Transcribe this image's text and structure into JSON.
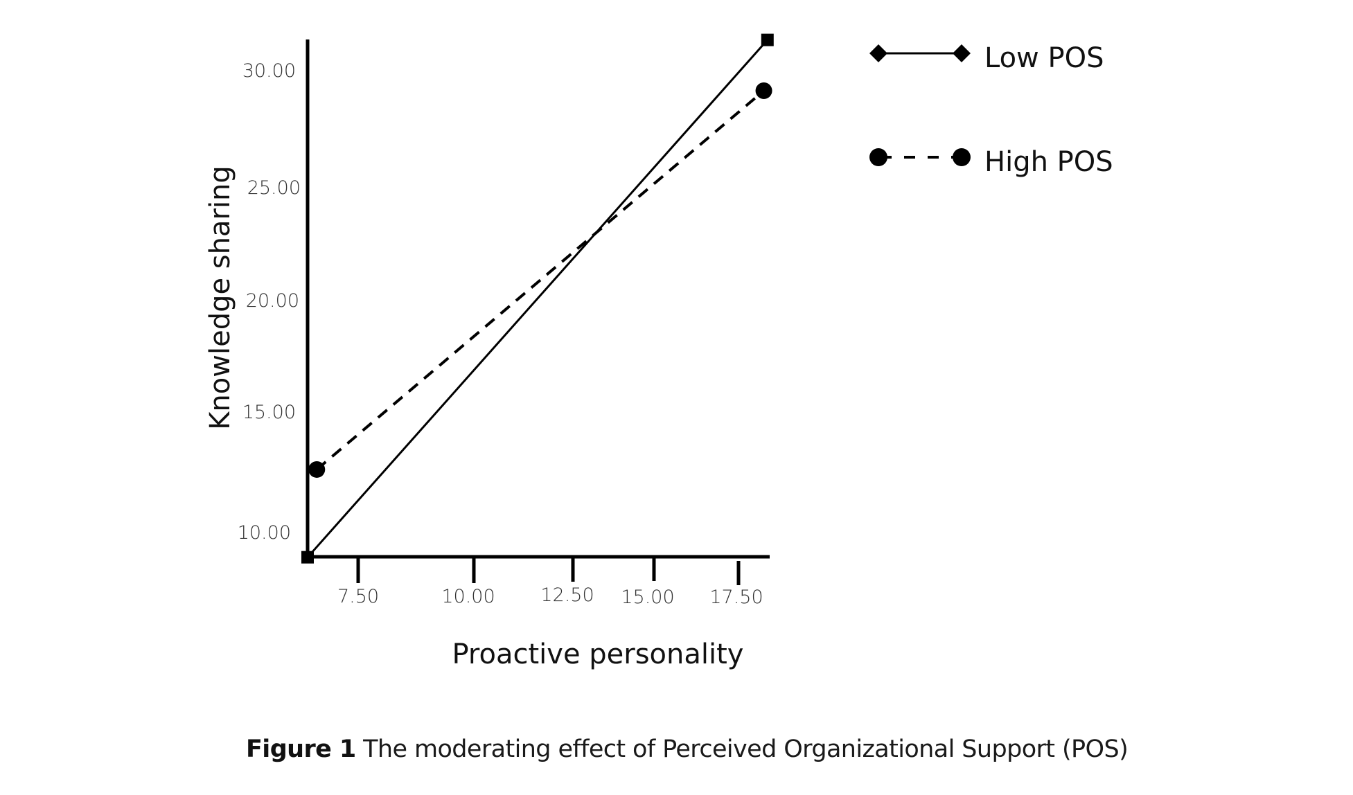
{
  "chart_data": {
    "type": "line",
    "title": "",
    "xlabel": "Proactive personality",
    "ylabel": "Knowledge sharing",
    "x_ticks": [
      "7.50",
      "10.00",
      "12.50",
      "15.00",
      "17.50"
    ],
    "x_tick_values": [
      7.5,
      10.0,
      12.5,
      15.0,
      17.5
    ],
    "y_ticks": [
      "30.00",
      "25.00",
      "20.00",
      "15.00",
      "10.00"
    ],
    "y_tick_values": [
      30.0,
      25.0,
      20.0,
      15.0,
      10.0
    ],
    "xlim": [
      6.4,
      18.4
    ],
    "ylim": [
      8.9,
      31.6
    ],
    "grid": false,
    "legend_position": "top-right",
    "series": [
      {
        "name": "Low POS",
        "line_style": "solid",
        "legend_marker": "diamond",
        "point_marker": "square",
        "x": [
          6.4,
          18.3
        ],
        "y": [
          8.9,
          31.3
        ]
      },
      {
        "name": "High POS",
        "line_style": "dashed",
        "legend_marker": "circle",
        "point_marker": "circle",
        "x": [
          6.6,
          18.2
        ],
        "y": [
          12.7,
          29.1
        ]
      }
    ]
  },
  "caption": {
    "label": "Figure 1",
    "text": "The moderating effect of Perceived Organizational Support (POS)"
  },
  "colors": {
    "ink": "#000000",
    "tick_text": "#333333",
    "background": "#ffffff"
  }
}
